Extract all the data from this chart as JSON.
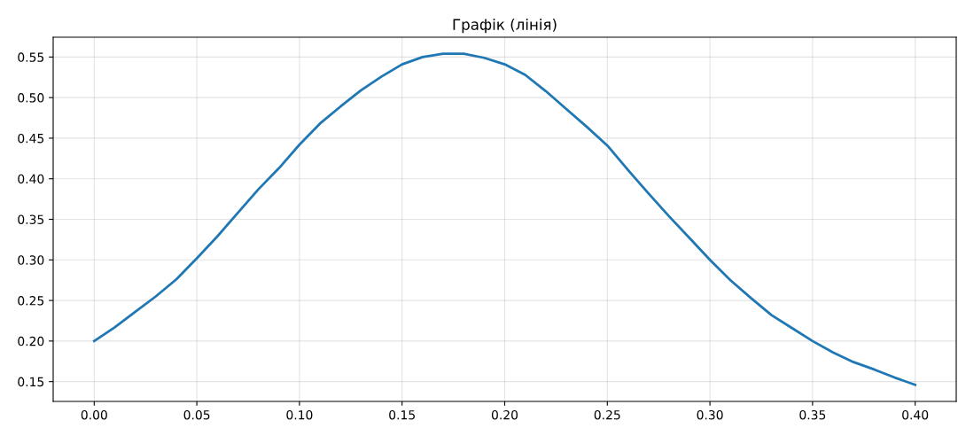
{
  "chart_data": {
    "type": "line",
    "title": "Графік (лінія)",
    "x": [
      0.0,
      0.01,
      0.02,
      0.03,
      0.04,
      0.05,
      0.06,
      0.07,
      0.08,
      0.09,
      0.1,
      0.11,
      0.12,
      0.13,
      0.14,
      0.15,
      0.16,
      0.17,
      0.18,
      0.19,
      0.2,
      0.21,
      0.22,
      0.23,
      0.24,
      0.25,
      0.26,
      0.27,
      0.28,
      0.29,
      0.3,
      0.31,
      0.32,
      0.33,
      0.34,
      0.35,
      0.36,
      0.37,
      0.38,
      0.39,
      0.4
    ],
    "series": [
      {
        "color": "#1f77b4",
        "values": [
          0.2,
          0.217,
          0.236,
          0.255,
          0.276,
          0.302,
          0.329,
          0.358,
          0.387,
          0.413,
          0.442,
          0.468,
          0.489,
          0.509,
          0.526,
          0.541,
          0.55,
          0.554,
          0.554,
          0.549,
          0.541,
          0.528,
          0.508,
          0.486,
          0.464,
          0.441,
          0.411,
          0.382,
          0.354,
          0.327,
          0.3,
          0.275,
          0.253,
          0.232,
          0.216,
          0.2,
          0.186,
          0.174,
          0.165,
          0.155,
          0.146
        ]
      }
    ],
    "xlim": [
      -0.02,
      0.42
    ],
    "ylim": [
      0.1256,
      0.5744
    ],
    "xticks": [
      {
        "value": 0.0,
        "label": "0.00"
      },
      {
        "value": 0.05,
        "label": "0.05"
      },
      {
        "value": 0.1,
        "label": "0.10"
      },
      {
        "value": 0.15,
        "label": "0.15"
      },
      {
        "value": 0.2,
        "label": "0.20"
      },
      {
        "value": 0.25,
        "label": "0.25"
      },
      {
        "value": 0.3,
        "label": "0.30"
      },
      {
        "value": 0.35,
        "label": "0.35"
      },
      {
        "value": 0.4,
        "label": "0.40"
      }
    ],
    "yticks": [
      {
        "value": 0.15,
        "label": "0.15"
      },
      {
        "value": 0.2,
        "label": "0.20"
      },
      {
        "value": 0.25,
        "label": "0.25"
      },
      {
        "value": 0.3,
        "label": "0.30"
      },
      {
        "value": 0.35,
        "label": "0.35"
      },
      {
        "value": 0.4,
        "label": "0.40"
      },
      {
        "value": 0.45,
        "label": "0.45"
      },
      {
        "value": 0.5,
        "label": "0.50"
      },
      {
        "value": 0.55,
        "label": "0.55"
      }
    ],
    "grid": true,
    "marker": "none",
    "line_style": "solid"
  }
}
